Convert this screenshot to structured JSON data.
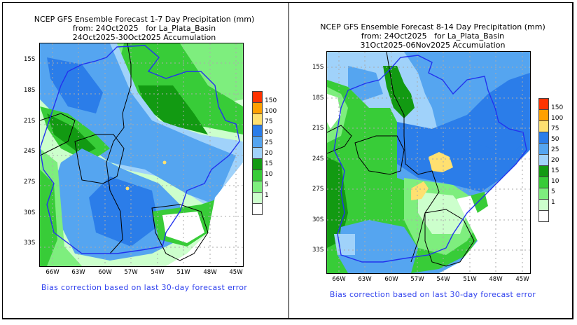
{
  "panels": [
    {
      "id": "week1",
      "title_lines": [
        "NCEP GFS Ensemble Forecast 1-7 Day Precipitation (mm)",
        "from: 24Oct2025   for La_Plata_Basin",
        "24Oct2025-30Oct2025 Accumulation"
      ],
      "footer": "Bias correction based on last 30-day forecast error",
      "lat_labels": [
        "15S",
        "18S",
        "21S",
        "24S",
        "27S",
        "30S",
        "33S"
      ],
      "lon_labels": [
        "66W",
        "63W",
        "60W",
        "57W",
        "54W",
        "51W",
        "48W",
        "45W"
      ],
      "dominant_pattern": "green (10-20 mm) in north and west, blue (25-75 mm) band across Paraguay/central basin, white/dry in Uruguay and Atlantic",
      "hotspots": [
        "isolated yellow 75-100 mm spots near 25S 54W and 27S 58W"
      ]
    },
    {
      "id": "week2",
      "title_lines": [
        "NCEP GFS Ensemble Forecast 8-14 Day Precipitation (mm)",
        "from: 24Oct2025   for La_Plata_Basin",
        "31Oct2025-06Nov2025 Accumulation"
      ],
      "footer": "Bias correction based on last 30-day forecast error",
      "lat_labels": [
        "15S",
        "18S",
        "21S",
        "24S",
        "27S",
        "30S",
        "33S"
      ],
      "lon_labels": [
        "66W",
        "63W",
        "60W",
        "57W",
        "54W",
        "51W",
        "48W",
        "45W"
      ],
      "dominant_pattern": "blue (25-75 mm) over most of the north and east basin, green (10-20 mm) in west/south, light green/white in Uruguay",
      "hotspots": [
        "yellow 75-100 mm areas near 25S 55W and 27S 57W"
      ]
    }
  ],
  "legend": {
    "unit": "mm",
    "levels": [
      {
        "label": "150",
        "color": "#ff3300"
      },
      {
        "label": "100",
        "color": "#ffa000"
      },
      {
        "label": "75",
        "color": "#ffe070"
      },
      {
        "label": "50",
        "color": "#2b7de9"
      },
      {
        "label": "25",
        "color": "#55a5f0"
      },
      {
        "label": "20",
        "color": "#a0d2fa"
      },
      {
        "label": "15",
        "color": "#129a12"
      },
      {
        "label": "10",
        "color": "#38cc38"
      },
      {
        "label": "5",
        "color": "#7eee7e"
      },
      {
        "label": "1",
        "color": "#ccffcc"
      },
      {
        "label": "",
        "color": "#ffffff"
      }
    ]
  },
  "colors": {
    "basin_outline": "#2233ee",
    "border": "#000000",
    "footer_text": "#3344ee",
    "grid": "#aaaaaa"
  }
}
